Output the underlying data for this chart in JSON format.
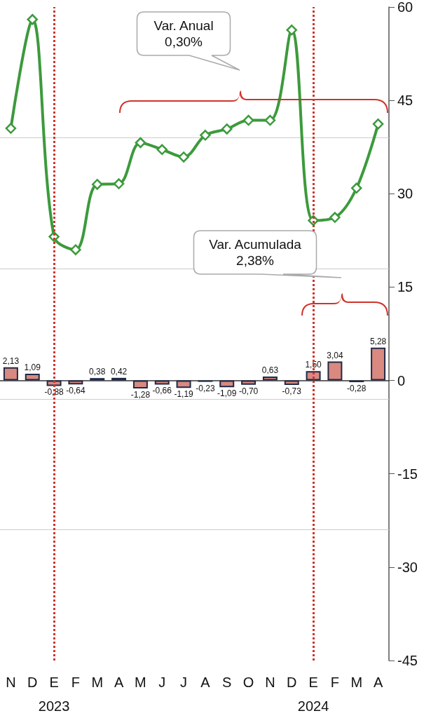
{
  "chart_data": {
    "type": "bar",
    "categories": [
      "N",
      "D",
      "E\n2023",
      "F",
      "M",
      "A",
      "M",
      "J",
      "J",
      "A",
      "S",
      "O",
      "N",
      "D",
      "E\n2024",
      "F",
      "M",
      "A"
    ],
    "series": [
      {
        "color": "#d9897f",
        "values": [
          2.13,
          1.09,
          -0.88,
          -0.64,
          0.38,
          0.42,
          -1.28,
          -0.66,
          -1.19,
          -0.23,
          -1.09,
          -0.7,
          0.63,
          -0.73,
          1.5,
          3.04,
          -0.28,
          5.28
        ],
        "value_labels": [
          "2,13",
          "1,09",
          "-0,88",
          "-0,64",
          "0,38",
          "0,42",
          "-1,28",
          "-0,66",
          "-1,19",
          "-0,23",
          "-1,09",
          "-0,70",
          "0,63",
          "-0,73",
          "1,50",
          "3,04",
          "-0,28",
          "5,28"
        ]
      },
      {
        "type": "line",
        "color": "#3c9a3c",
        "values": [
          40.5,
          58.0,
          23.1,
          21.0,
          31.5,
          31.6,
          38.2,
          37.1,
          35.9,
          39.4,
          40.4,
          41.8,
          41.8,
          56.3,
          25.7,
          26.2,
          30.9,
          41.2
        ]
      }
    ],
    "ylim": [
      -45,
      60
    ],
    "yticks": [
      -45,
      -30,
      -15,
      0,
      15,
      30,
      45,
      60
    ],
    "marker": "diamond",
    "line_style": "solid",
    "ref_lines": [
      {
        "axis": "x",
        "value": "E\n2023",
        "color": "#d0342c",
        "line_style": "dotted"
      },
      {
        "axis": "x",
        "value": "E\n2024",
        "color": "#d0342c",
        "line_style": "dotted"
      },
      {
        "axis": "y",
        "value": 39,
        "color": "#cccccc",
        "line_style": "solid"
      },
      {
        "axis": "y",
        "value": 18,
        "color": "#cccccc",
        "line_style": "solid"
      },
      {
        "axis": "y",
        "value": -3,
        "color": "#cccccc",
        "line_style": "solid"
      },
      {
        "axis": "y",
        "value": -24,
        "color": "#cccccc",
        "line_style": "solid"
      }
    ],
    "annotations": [
      "Var. Anual\n0,30%",
      "Var. Acumulada\n2,38%"
    ]
  }
}
